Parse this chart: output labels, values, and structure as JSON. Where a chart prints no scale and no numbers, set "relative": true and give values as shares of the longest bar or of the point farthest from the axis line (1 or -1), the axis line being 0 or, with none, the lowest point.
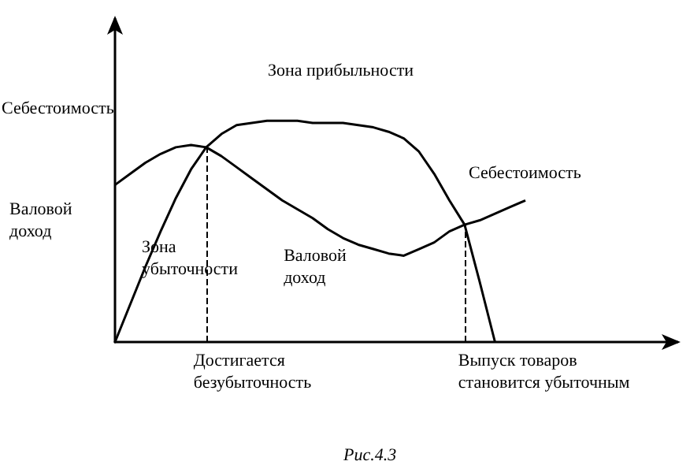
{
  "chart_data": {
    "type": "line",
    "relative": true,
    "legend": false,
    "marker": "none",
    "line_style": "solid",
    "ylabel": "Себестоимость",
    "categories": [
      null,
      null,
      null,
      null,
      null,
      null,
      null,
      null,
      null,
      null,
      null,
      null,
      null,
      null,
      null,
      null,
      null,
      null,
      null,
      null,
      null,
      null,
      null,
      null,
      null,
      null,
      null,
      null,
      null,
      null,
      null,
      null,
      null,
      null,
      null,
      null,
      null,
      null
    ],
    "annotations": [
      "Валовой доход",
      "Зона прибыльности",
      "Зона убыточности",
      "Рис.4.3",
      "Достигается безубыточность",
      "Выпуск товаров становится убыточным",
      "Валовой доход"
    ],
    "series": [
      {
        "name": "Себестоимость",
        "color": "#000000",
        "values": [
          0.71,
          0.76,
          0.81,
          0.85,
          0.88,
          0.89,
          0.88,
          0.84,
          0.79,
          0.74,
          0.69,
          0.64,
          0.6,
          0.56,
          0.51,
          0.47,
          0.44,
          0.42,
          0.4,
          0.39,
          0.42,
          0.45,
          0.5,
          0.53,
          0.55,
          0.58,
          0.61,
          0.64,
          null,
          null,
          null,
          null,
          null,
          null,
          null,
          null,
          null,
          null
        ]
      },
      {
        "color": "#000000",
        "values": [
          0,
          0.17,
          0.34,
          0.5,
          0.65,
          0.78,
          0.88,
          0.94,
          0.98,
          0.99,
          1,
          1,
          1,
          0.99,
          0.99,
          0.99,
          0.98,
          0.97,
          0.95,
          0.92,
          0.86,
          0.76,
          0.64,
          0.53,
          0.27,
          0,
          null,
          null,
          null,
          null,
          null,
          null,
          null,
          null,
          null,
          null,
          null,
          null
        ]
      }
    ]
  }
}
